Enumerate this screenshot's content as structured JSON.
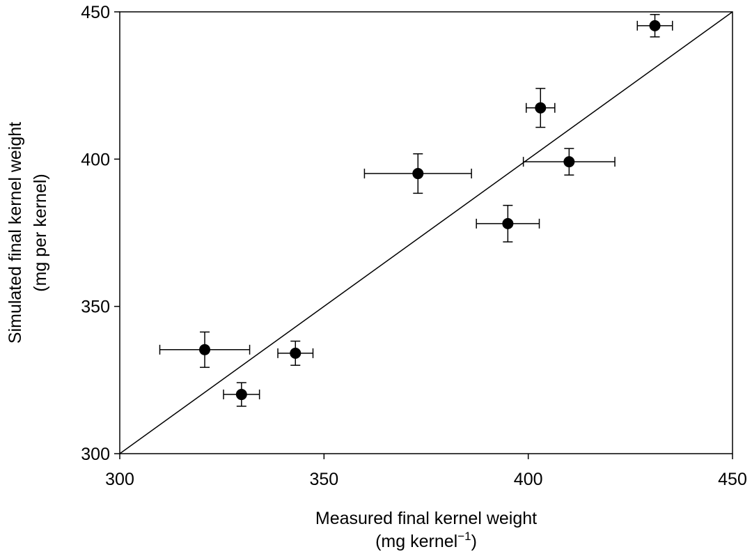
{
  "chart_data": {
    "type": "scatter",
    "xlabel": "Measured final kernel weight",
    "xlabel_line2": {
      "pre": "(mg kernel",
      "sup": "−1",
      "post": ")"
    },
    "ylabel": "Simulated final kernel weight",
    "ylabel_line2": "(mg per kernel)",
    "xlim": [
      300,
      450
    ],
    "ylim": [
      300,
      450
    ],
    "xticks": [
      "300",
      "350",
      "400",
      "450"
    ],
    "yticks": [
      "300",
      "350",
      "400",
      "450"
    ],
    "grid": false,
    "reference_line": "1:1",
    "points": [
      {
        "x": 431,
        "y": 445.3,
        "xerr": 4.3,
        "yerr": 3.8
      },
      {
        "x": 403,
        "y": 417.4,
        "xerr": 3.5,
        "yerr": 6.6
      },
      {
        "x": 373,
        "y": 395.1,
        "xerr": 13.1,
        "yerr": 6.7
      },
      {
        "x": 410,
        "y": 399.1,
        "xerr": 11.2,
        "yerr": 4.5
      },
      {
        "x": 395,
        "y": 378.1,
        "xerr": 7.7,
        "yerr": 6.2
      },
      {
        "x": 320.8,
        "y": 335.3,
        "xerr": 11,
        "yerr": 6
      },
      {
        "x": 343,
        "y": 334.1,
        "xerr": 4.3,
        "yerr": 4.1
      },
      {
        "x": 329.8,
        "y": 320.1,
        "xerr": 4.4,
        "yerr": 4
      }
    ],
    "colors": {
      "marker": "#000000",
      "line": "#000000"
    }
  }
}
